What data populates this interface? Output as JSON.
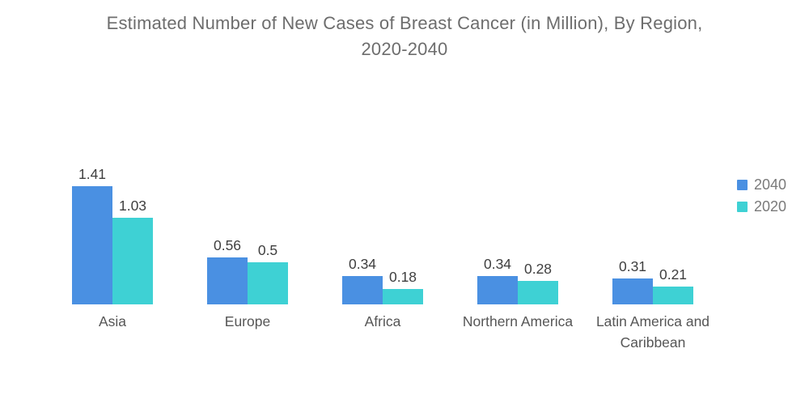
{
  "title": {
    "line1": "Estimated Number of New Cases of Breast Cancer (in Million), By Region,",
    "line2": "2020-2040"
  },
  "colors": {
    "series_2040": "#4a90e2",
    "series_2020": "#3ed1d4",
    "title_text": "#6d6d6d",
    "value_label_text": "#3f3f3f",
    "category_label_text": "#565656",
    "legend_text": "#7a7a7a",
    "background": "#ffffff"
  },
  "chart_data": {
    "type": "bar",
    "title": "Estimated Number of New Cases of Breast Cancer (in Million), By Region, 2020-2040",
    "categories": [
      "Asia",
      "Europe",
      "Africa",
      "Northern America",
      "Latin America and Caribbean"
    ],
    "series": [
      {
        "name": "2040",
        "color": "#4a90e2",
        "values": [
          1.41,
          0.56,
          0.34,
          0.34,
          0.31
        ]
      },
      {
        "name": "2020",
        "color": "#3ed1d4",
        "values": [
          1.03,
          0.5,
          0.18,
          0.28,
          0.21
        ]
      }
    ],
    "xlabel": "",
    "ylabel": "",
    "ylim": [
      0,
      1.6
    ],
    "grid": false,
    "axes_shown": false,
    "value_labels": true,
    "legend_position": "right"
  }
}
